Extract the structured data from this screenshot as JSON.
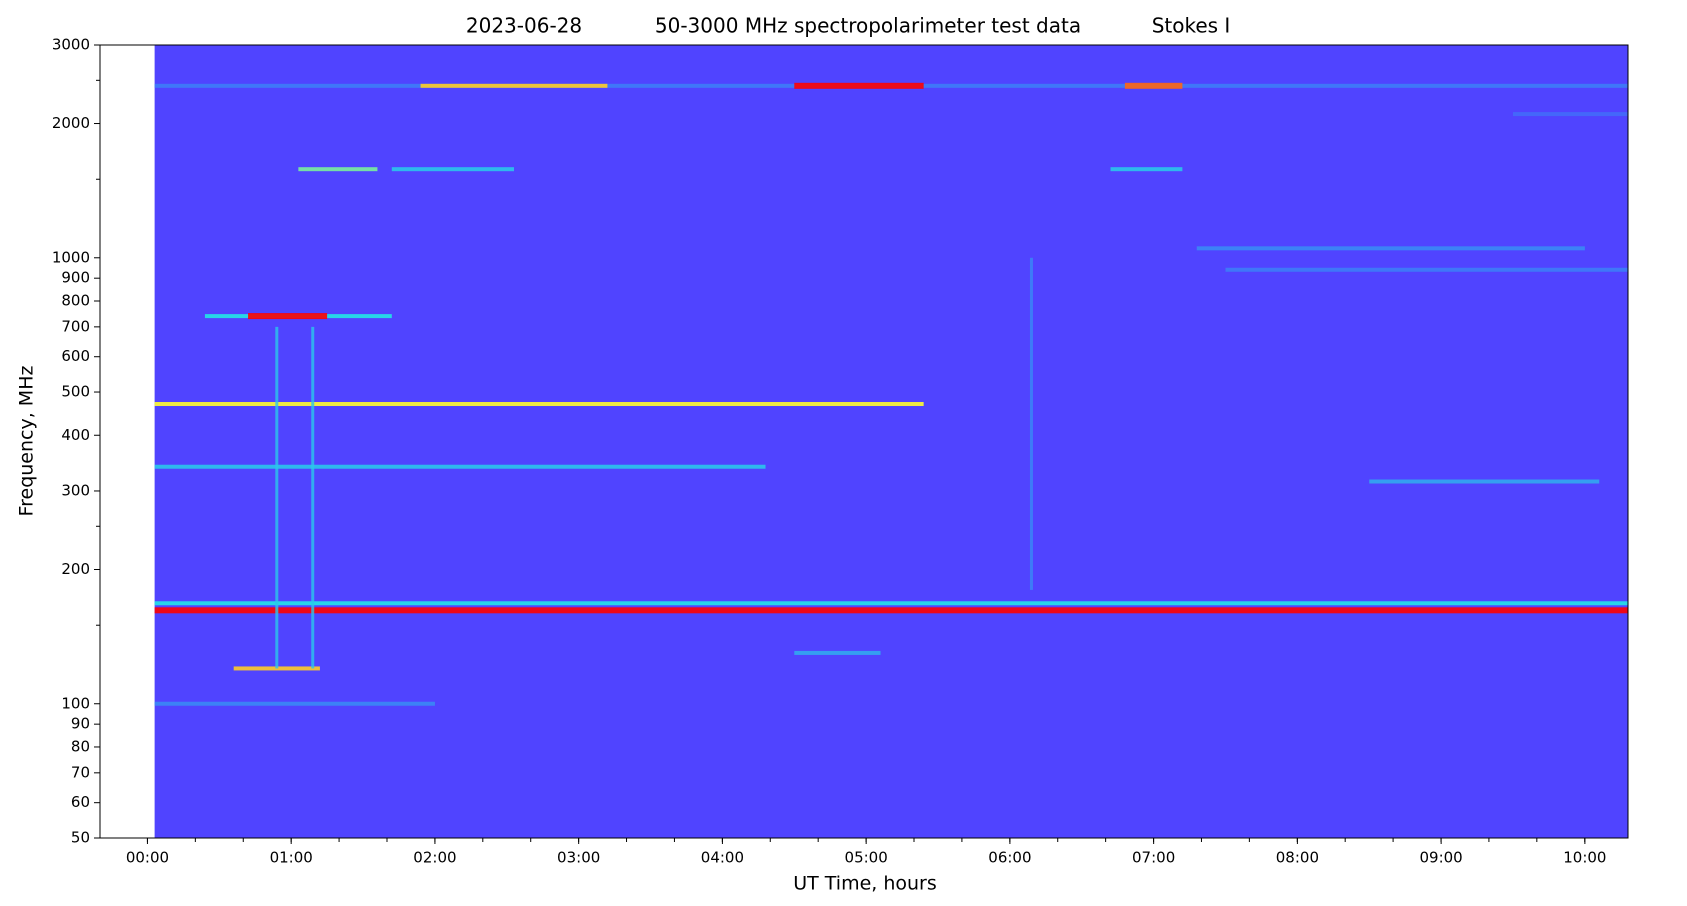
{
  "chart_data": {
    "type": "spectrogram",
    "title": [
      "2023-06-28",
      "50-3000 MHz spectropolarimeter test data",
      "Stokes I"
    ],
    "xlabel": "UT Time, hours",
    "ylabel": "Frequency, MHz",
    "xlim": [
      -0.33,
      10.3
    ],
    "ylim": [
      50,
      3000
    ],
    "ylog": true,
    "xticks": [
      {
        "value": 0,
        "label": "00:00"
      },
      {
        "value": 1,
        "label": "01:00"
      },
      {
        "value": 2,
        "label": "02:00"
      },
      {
        "value": 3,
        "label": "03:00"
      },
      {
        "value": 4,
        "label": "04:00"
      },
      {
        "value": 5,
        "label": "05:00"
      },
      {
        "value": 6,
        "label": "06:00"
      },
      {
        "value": 7,
        "label": "07:00"
      },
      {
        "value": 8,
        "label": "08:00"
      },
      {
        "value": 9,
        "label": "09:00"
      },
      {
        "value": 10,
        "label": "10:00"
      }
    ],
    "xminor_step": 0.3333,
    "yticks": [
      50,
      60,
      70,
      80,
      90,
      100,
      200,
      300,
      400,
      500,
      600,
      700,
      800,
      900,
      1000,
      2000,
      3000
    ],
    "yminorticks": [
      150,
      250,
      1500,
      2500
    ],
    "colormap": [
      "#6a22ff",
      "#4a4cff",
      "#22e6e6",
      "#ffff30",
      "#ff0000"
    ],
    "data_start": 0.05,
    "background_level": 0.2,
    "features": [
      {
        "freq": 2430,
        "t": [
          0.05,
          10.3
        ],
        "level": 0.33
      },
      {
        "freq": 2430,
        "t": [
          1.9,
          3.2
        ],
        "level": 0.8
      },
      {
        "freq": 2430,
        "t": [
          4.5,
          5.4
        ],
        "level": 1
      },
      {
        "freq": 2430,
        "t": [
          6.8,
          7.2
        ],
        "level": 0.9
      },
      {
        "freq": 2100,
        "t": [
          9.5,
          10.3
        ],
        "level": 0.3
      },
      {
        "freq": 1580,
        "t": [
          1.05,
          1.6
        ],
        "level": 0.6
      },
      {
        "freq": 1580,
        "t": [
          1.7,
          2.55
        ],
        "level": 0.45
      },
      {
        "freq": 1580,
        "t": [
          6.7,
          7.2
        ],
        "level": 0.45
      },
      {
        "freq": 1050,
        "t": [
          7.3,
          10.0
        ],
        "level": 0.35
      },
      {
        "freq": 940,
        "t": [
          7.5,
          10.3
        ],
        "level": 0.33
      },
      {
        "freq": 740,
        "t": [
          0.4,
          1.7
        ],
        "level": 0.5
      },
      {
        "freq": 740,
        "t": [
          0.7,
          1.25
        ],
        "level": 1
      },
      {
        "freq": 470,
        "t": [
          0.05,
          5.4
        ],
        "level": 0.75
      },
      {
        "freq": 340,
        "t": [
          0.05,
          4.3
        ],
        "level": 0.45
      },
      {
        "freq": 315,
        "t": [
          8.5,
          10.1
        ],
        "level": 0.4
      },
      {
        "freq": 168,
        "t": [
          0.05,
          10.3
        ],
        "level": 0.5
      },
      {
        "freq": 162,
        "t": [
          0.05,
          10.3
        ],
        "level": 1
      },
      {
        "freq": 130,
        "t": [
          4.5,
          5.1
        ],
        "level": 0.4
      },
      {
        "freq": 120,
        "t": [
          0.6,
          1.2
        ],
        "level": 0.8
      },
      {
        "freq": 100,
        "t": [
          0.05,
          2.0
        ],
        "level": 0.35
      }
    ],
    "streaks": [
      {
        "t": 0.9,
        "freq": [
          120,
          700
        ],
        "level": 0.45
      },
      {
        "t": 1.15,
        "freq": [
          120,
          700
        ],
        "level": 0.45
      },
      {
        "t": 6.15,
        "freq": [
          180,
          1000
        ],
        "level": 0.35
      }
    ]
  }
}
